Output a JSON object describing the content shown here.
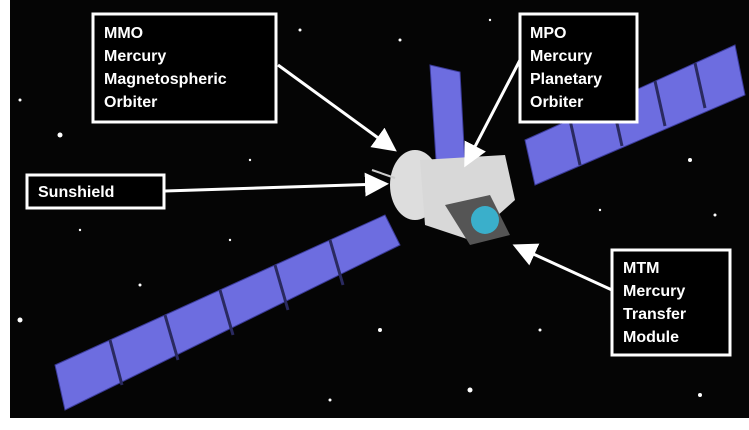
{
  "labels": [
    {
      "lines": [
        "MMO",
        "Mercury",
        "Magnetospheric",
        "Orbiter"
      ]
    },
    {
      "lines": [
        "MPO",
        "Mercury",
        "Planetary",
        "Orbiter"
      ]
    },
    {
      "lines": [
        "Sunshield"
      ]
    },
    {
      "lines": [
        "MTM",
        "Mercury",
        "Transfer",
        "Module"
      ]
    }
  ]
}
